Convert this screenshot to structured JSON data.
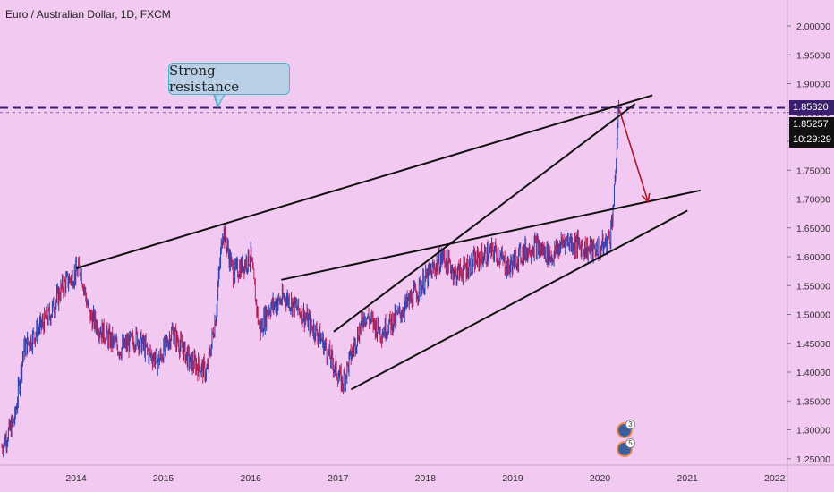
{
  "header": {
    "symbol_title": "Euro / Australian Dollar, 1D, FXCM"
  },
  "annotation": {
    "callout_text": "Strong resistance"
  },
  "price_badges": {
    "resistance": "1.85820",
    "last_price": "1.85257",
    "countdown": "10:29:29"
  },
  "events": [
    {
      "count": "3"
    },
    {
      "count": "5"
    }
  ],
  "colors": {
    "background": "#f2c9f0",
    "candle_up": "#2a3fae",
    "candle_down": "#c0245c",
    "trendline": "#111111",
    "resistance_line": "#3a1f6e",
    "arrow": "#b0182a"
  },
  "chart_data": {
    "type": "line",
    "title": "Euro / Australian Dollar, 1D, FXCM",
    "xlabel": "",
    "ylabel": "",
    "y_tick_labels": [
      "2.00000",
      "1.95000",
      "1.90000",
      "1.85000",
      "1.80000",
      "1.75000",
      "1.70000",
      "1.65000",
      "1.60000",
      "1.55000",
      "1.50000",
      "1.45000",
      "1.40000",
      "1.35000",
      "1.30000",
      "1.25000"
    ],
    "x_tick_labels": [
      "2014",
      "2015",
      "2016",
      "2017",
      "2018",
      "2019",
      "2020",
      "2021",
      "2022"
    ],
    "ylim": [
      1.245,
      2.035
    ],
    "xlim": [
      2013.15,
      2022.1
    ],
    "grid": false,
    "series": [
      {
        "x": [
          2013.15,
          2013.3,
          2013.4,
          2013.55,
          2013.7,
          2013.85,
          2014.05,
          2014.15,
          2014.3,
          2014.5,
          2014.7,
          2014.85,
          2014.95,
          2015.1,
          2015.3,
          2015.5,
          2015.6,
          2015.68,
          2015.8,
          2016.0,
          2016.1,
          2016.2,
          2016.4,
          2016.6,
          2016.8,
          2017.05,
          2017.15,
          2017.3,
          2017.5,
          2017.7,
          2017.95,
          2018.2,
          2018.35,
          2018.45,
          2018.65,
          2018.8,
          2018.95,
          2019.05,
          2019.25,
          2019.45,
          2019.6,
          2019.75,
          2019.9,
          2020.05,
          2020.12,
          2020.17,
          2020.2,
          2020.22
        ],
        "values": [
          1.27,
          1.32,
          1.44,
          1.47,
          1.5,
          1.55,
          1.58,
          1.5,
          1.47,
          1.44,
          1.46,
          1.43,
          1.42,
          1.47,
          1.42,
          1.4,
          1.5,
          1.65,
          1.57,
          1.6,
          1.47,
          1.51,
          1.53,
          1.5,
          1.46,
          1.38,
          1.43,
          1.5,
          1.47,
          1.5,
          1.55,
          1.6,
          1.57,
          1.58,
          1.6,
          1.61,
          1.58,
          1.6,
          1.62,
          1.6,
          1.63,
          1.62,
          1.61,
          1.62,
          1.64,
          1.72,
          1.83,
          1.855
        ]
      }
    ],
    "annotations": [
      {
        "text": "Strong resistance",
        "value": 1.8582
      },
      {
        "text": "1.85257",
        "value": 1.85257
      },
      {
        "text": "10:29:29"
      }
    ],
    "resistance_level": 1.8582,
    "trend_lines": [
      {
        "x1": 2014.0,
        "y1": 1.58,
        "x2": 2020.6,
        "y2": 1.88
      },
      {
        "x1": 2016.35,
        "y1": 1.56,
        "x2": 2021.15,
        "y2": 1.715
      },
      {
        "x1": 2016.95,
        "y1": 1.47,
        "x2": 2020.4,
        "y2": 1.865
      },
      {
        "x1": 2017.15,
        "y1": 1.37,
        "x2": 2021.0,
        "y2": 1.68
      }
    ],
    "projection_arrow": {
      "x1": 2020.22,
      "y1": 1.855,
      "x2": 2020.55,
      "y2": 1.695
    }
  }
}
